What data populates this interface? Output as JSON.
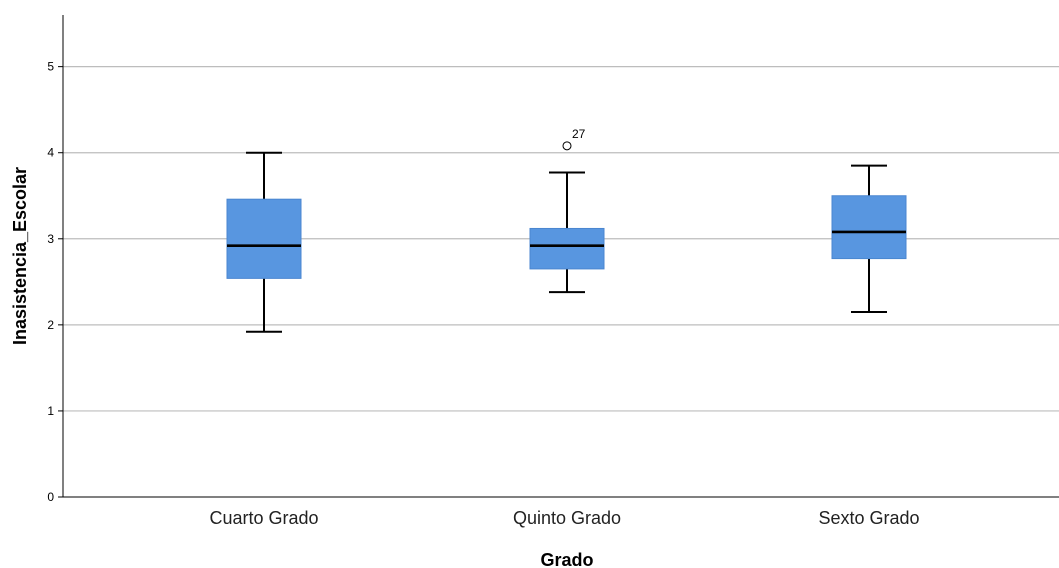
{
  "chart_data": {
    "type": "boxplot",
    "xlabel": "Grado",
    "ylabel": "Inasistencia_Escolar",
    "ylim": [
      0,
      5.6
    ],
    "yticks": [
      0,
      1,
      2,
      3,
      4,
      5
    ],
    "grid": true,
    "box_color": "#5896e0",
    "categories": [
      "Cuarto Grado",
      "Quinto Grado",
      "Sexto Grado"
    ],
    "boxes": [
      {
        "category": "Cuarto Grado",
        "min": 1.92,
        "q1": 2.54,
        "median": 2.92,
        "q3": 3.46,
        "max": 4.0,
        "outliers": []
      },
      {
        "category": "Quinto Grado",
        "min": 2.38,
        "q1": 2.65,
        "median": 2.92,
        "q3": 3.12,
        "max": 3.77,
        "outliers": [
          {
            "value": 4.08,
            "label": "27"
          }
        ]
      },
      {
        "category": "Sexto Grado",
        "min": 2.15,
        "q1": 2.77,
        "median": 3.08,
        "q3": 3.5,
        "max": 3.85,
        "outliers": []
      }
    ]
  }
}
